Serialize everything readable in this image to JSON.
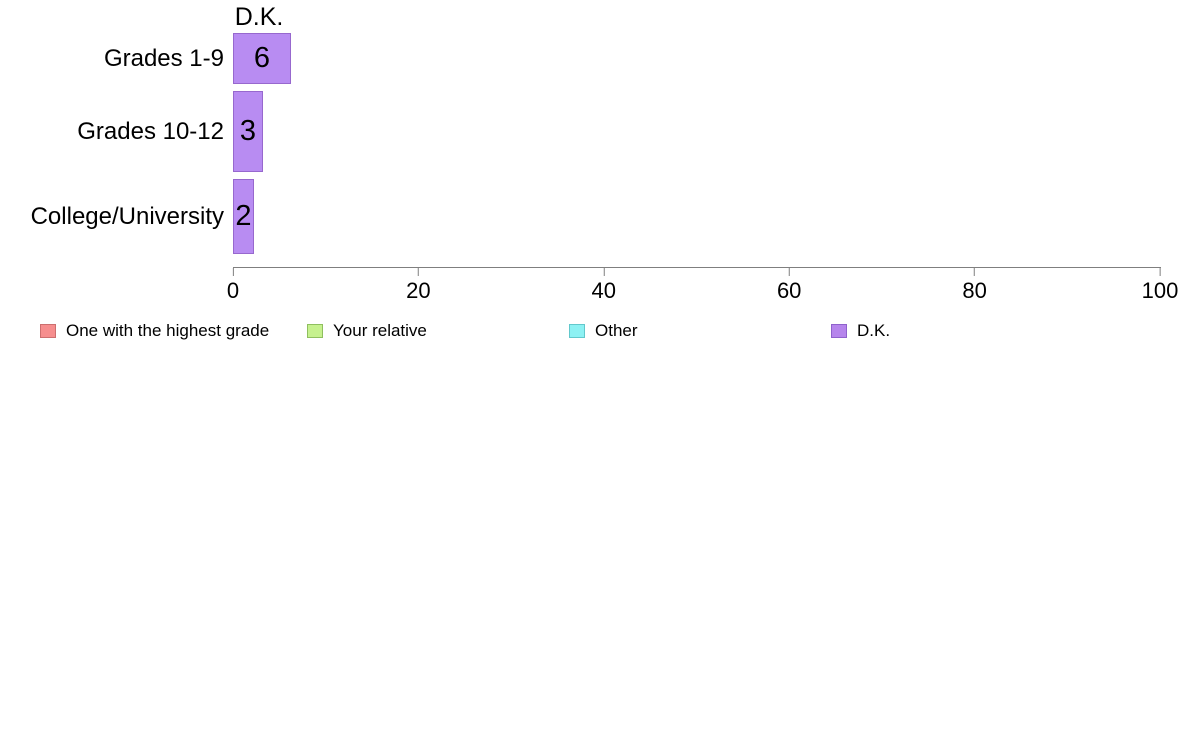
{
  "chart_data": {
    "type": "bar",
    "orientation": "horizontal",
    "title": "D.K.",
    "series_shown": "D.K.",
    "categories": [
      "Grades 1-9",
      "Grades 10-12",
      "College/University"
    ],
    "values": [
      6,
      3,
      2
    ],
    "xlabel": "",
    "ylabel": "",
    "xlim": [
      0,
      100
    ],
    "xticks": [
      0,
      20,
      40,
      60,
      80,
      100
    ],
    "grid": false,
    "legend_position": "bottom",
    "bar_color": "#b88cf2",
    "bar_border_color": "#9768ce",
    "legend": [
      {
        "label": "One with the highest grade",
        "color": "#f68e8e",
        "border": "#cc6f6f"
      },
      {
        "label": "Your relative",
        "color": "#c6f18e",
        "border": "#8fbf5f"
      },
      {
        "label": "Other",
        "color": "#8df1f3",
        "border": "#62c8cc"
      },
      {
        "label": "D.K.",
        "color": "#b685ec",
        "border": "#8f62cc"
      }
    ]
  }
}
